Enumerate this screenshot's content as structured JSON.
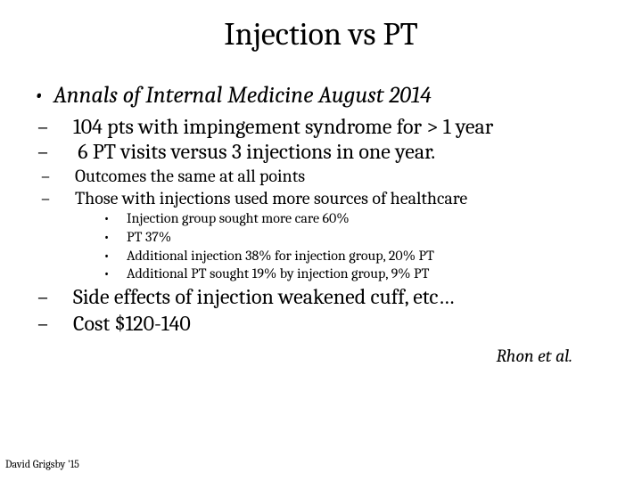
{
  "title": "Injection vs PT",
  "source": "Annals of Internal Medicine August 2014",
  "points_large": [
    "104 pts with impingement syndrome for >  1 year",
    " 6 PT visits versus 3 injections in one year."
  ],
  "points_med": [
    "Outcomes the same at all points",
    "Those with injections used more sources of healthcare"
  ],
  "sub_points": [
    "Injection group sought more care 60%",
    "PT 37%",
    "Additional injection 38% for injection group, 20% PT",
    "Additional PT sought 19% by injection group, 9% PT"
  ],
  "points_after": [
    "Side effects of injection weakened cuff, etc…",
    "Cost $120-140"
  ],
  "citation": "Rhon et al.",
  "footer": "David Grigsby '15",
  "style": {
    "background_color": "#ffffff",
    "text_color": "#000000",
    "title_fontsize": 36,
    "lvl0_fontsize": 26,
    "lvl1_big_fontsize": 24,
    "lvl1_med_fontsize": 20,
    "lvl2_fontsize": 16,
    "citation_fontsize": 20,
    "footer_fontsize": 12,
    "font_family": "Cambria, Georgia, serif"
  }
}
